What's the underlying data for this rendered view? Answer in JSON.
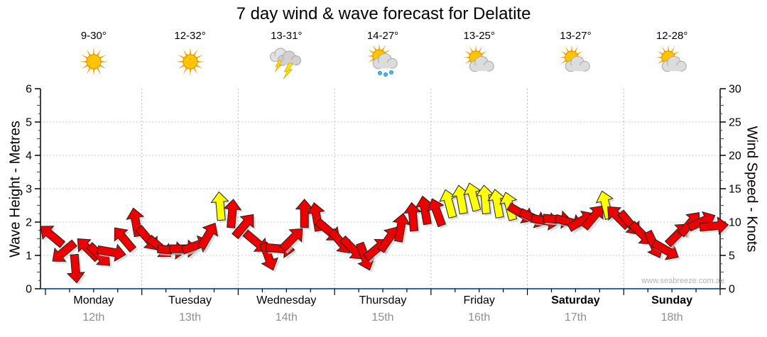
{
  "title": "7 day wind & wave forecast for Delatite",
  "watermark": "www.seabreeze.com.au",
  "axes": {
    "left_label": "Wave Height - Metres",
    "right_label": "Wind Speed - Knots"
  },
  "days": [
    {
      "name": "Monday",
      "date": "12th",
      "temp": "9-30°",
      "icon": "sunny",
      "weekend": false
    },
    {
      "name": "Tuesday",
      "date": "13th",
      "temp": "12-32°",
      "icon": "sunny",
      "weekend": false
    },
    {
      "name": "Wednesday",
      "date": "14th",
      "temp": "13-31°",
      "icon": "storm",
      "weekend": false
    },
    {
      "name": "Thursday",
      "date": "15th",
      "temp": "14-27°",
      "icon": "showers",
      "weekend": false
    },
    {
      "name": "Friday",
      "date": "16th",
      "temp": "13-25°",
      "icon": "partly-cloudy",
      "weekend": false
    },
    {
      "name": "Saturday",
      "date": "17th",
      "temp": "13-27°",
      "icon": "partly-cloudy",
      "weekend": true
    },
    {
      "name": "Sunday",
      "date": "18th",
      "temp": "12-28°",
      "icon": "partly-cloudy",
      "weekend": true
    }
  ],
  "chart_data": {
    "type": "wind-arrow-series",
    "title": "7 day wind & wave forecast for Delatite",
    "left_axis": {
      "label": "Wave Height - Metres",
      "min": 0,
      "max": 6,
      "ticks": [
        0,
        1,
        2,
        3,
        4,
        5,
        6
      ]
    },
    "right_axis": {
      "label": "Wind Speed - Knots",
      "min": 0,
      "max": 30,
      "ticks": [
        0,
        5,
        10,
        15,
        20,
        25,
        30
      ]
    },
    "grid": {
      "horizontal_at_metres": [
        1,
        2,
        3,
        4,
        5
      ],
      "vertical_at_day_boundaries": true
    },
    "colors": {
      "normal": "#ee0000",
      "strong": "#ffff00",
      "outline": "#222222",
      "strong_threshold_knots": 12,
      "bottom_axis": "#336699",
      "gridline": "#b8b8b8",
      "shadow": "#d0d0d0"
    },
    "points_per_day": 8,
    "interval_hours": 3,
    "points": [
      {
        "knots": 8.0,
        "dir": -50
      },
      {
        "knots": 5.5,
        "dir": -130
      },
      {
        "knots": 3.0,
        "dir": 175
      },
      {
        "knots": 6.0,
        "dir": -45
      },
      {
        "knots": 5.0,
        "dir": 135
      },
      {
        "knots": 5.5,
        "dir": 100
      },
      {
        "knots": 7.5,
        "dir": -40
      },
      {
        "knots": 10.0,
        "dir": -10
      },
      {
        "knots": 7.5,
        "dir": 140
      },
      {
        "knots": 6.2,
        "dir": 130
      },
      {
        "knots": 5.8,
        "dir": 95
      },
      {
        "knots": 6.0,
        "dir": 90
      },
      {
        "knots": 6.5,
        "dir": 70
      },
      {
        "knots": 8.0,
        "dir": 30
      },
      {
        "knots": 12.4,
        "dir": -5
      },
      {
        "knots": 11.3,
        "dir": 5
      },
      {
        "knots": 9.5,
        "dir": 40
      },
      {
        "knots": 7.0,
        "dir": 130
      },
      {
        "knots": 4.8,
        "dir": 160
      },
      {
        "knots": 6.0,
        "dir": 95
      },
      {
        "knots": 7.5,
        "dir": 45
      },
      {
        "knots": 11.3,
        "dir": 0
      },
      {
        "knots": 10.8,
        "dir": -10
      },
      {
        "knots": 8.7,
        "dir": 130
      },
      {
        "knots": 7.0,
        "dir": 140
      },
      {
        "knots": 6.0,
        "dir": 135
      },
      {
        "knots": 4.8,
        "dir": 160
      },
      {
        "knots": 6.0,
        "dir": 50
      },
      {
        "knots": 7.5,
        "dir": 35
      },
      {
        "knots": 9.2,
        "dir": 10
      },
      {
        "knots": 10.8,
        "dir": -5
      },
      {
        "knots": 11.8,
        "dir": -10
      },
      {
        "knots": 11.5,
        "dir": -20
      },
      {
        "knots": 12.8,
        "dir": -15
      },
      {
        "knots": 13.4,
        "dir": -10
      },
      {
        "knots": 13.8,
        "dir": -15
      },
      {
        "knots": 13.4,
        "dir": -5
      },
      {
        "knots": 12.8,
        "dir": -10
      },
      {
        "knots": 12.4,
        "dir": -15
      },
      {
        "knots": 11.3,
        "dir": 120
      },
      {
        "knots": 10.6,
        "dir": 115
      },
      {
        "knots": 10.2,
        "dir": 100
      },
      {
        "knots": 10.4,
        "dir": 95
      },
      {
        "knots": 10.0,
        "dir": 105
      },
      {
        "knots": 10.2,
        "dir": 60
      },
      {
        "knots": 10.8,
        "dir": 40
      },
      {
        "knots": 12.6,
        "dir": -15
      },
      {
        "knots": 10.8,
        "dir": -45
      },
      {
        "knots": 9.8,
        "dir": 140
      },
      {
        "knots": 8.2,
        "dir": 135
      },
      {
        "knots": 6.6,
        "dir": 155
      },
      {
        "knots": 5.8,
        "dir": 120
      },
      {
        "knots": 8.2,
        "dir": 45
      },
      {
        "knots": 9.8,
        "dir": 40
      },
      {
        "knots": 10.1,
        "dir": 65
      },
      {
        "knots": 9.4,
        "dir": 85
      }
    ]
  }
}
